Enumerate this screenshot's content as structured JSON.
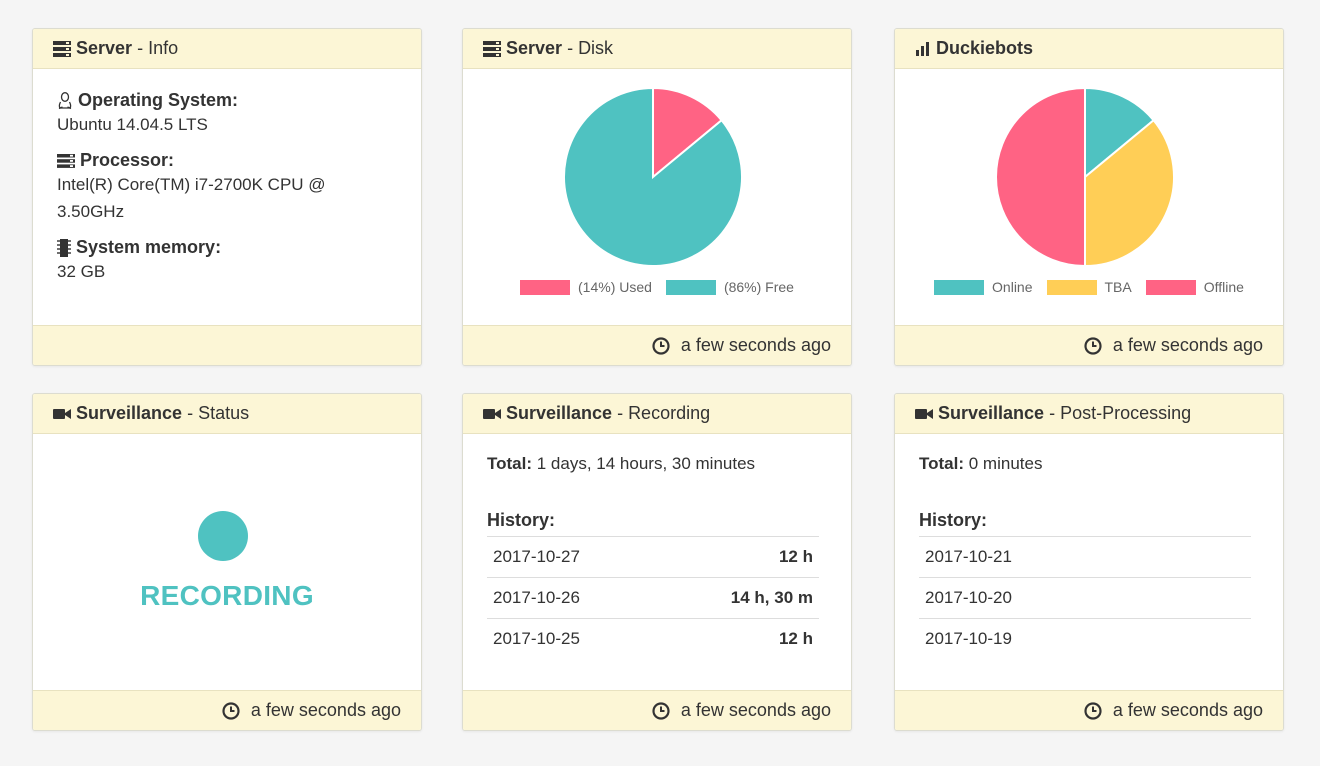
{
  "panels": {
    "server_info": {
      "title_bold": "Server",
      "title_rest": "Info",
      "os_label": "Operating System:",
      "os_value": "Ubuntu 14.04.5 LTS",
      "cpu_label": "Processor:",
      "cpu_value_line1": "Intel(R) Core(TM) i7-2700K CPU @",
      "cpu_value_line2": "3.50GHz",
      "mem_label": "System memory:",
      "mem_value": "32 GB"
    },
    "server_disk": {
      "title_bold": "Server",
      "title_rest": "Disk",
      "legend": [
        {
          "label": "(14%) Used",
          "color": "#ff6384"
        },
        {
          "label": "(86%) Free",
          "color": "#4fc2c1"
        }
      ],
      "footer": "a few seconds ago"
    },
    "duckiebots": {
      "title_bold": "Duckiebots",
      "legend": [
        {
          "label": "Online",
          "color": "#4fc2c1"
        },
        {
          "label": "TBA",
          "color": "#ffce56"
        },
        {
          "label": "Offline",
          "color": "#ff6384"
        }
      ],
      "footer": "a few seconds ago"
    },
    "surv_status": {
      "title_bold": "Surveillance",
      "title_rest": "Status",
      "status_text": "RECORDING",
      "footer": "a few seconds ago"
    },
    "surv_recording": {
      "title_bold": "Surveillance",
      "title_rest": "Recording",
      "total_label": "Total:",
      "total_value": "1 days, 14 hours, 30 minutes",
      "history_label": "History:",
      "history": [
        {
          "date": "2017-10-27",
          "value": "12 h"
        },
        {
          "date": "2017-10-26",
          "value": "14 h, 30 m"
        },
        {
          "date": "2017-10-25",
          "value": "12 h"
        }
      ],
      "footer": "a few seconds ago"
    },
    "surv_post": {
      "title_bold": "Surveillance",
      "title_rest": "Post-Processing",
      "total_label": "Total:",
      "total_value": "0 minutes",
      "history_label": "History:",
      "history": [
        {
          "date": "2017-10-21"
        },
        {
          "date": "2017-10-20"
        },
        {
          "date": "2017-10-19"
        }
      ],
      "footer": "a few seconds ago"
    }
  },
  "colors": {
    "teal": "#4fc2c1",
    "pink": "#ff6384",
    "yellow": "#ffce56",
    "header_bg": "#fcf6d6"
  },
  "chart_data": [
    {
      "type": "pie",
      "categories": [
        "(14%) Used",
        "(86%) Free"
      ],
      "values": [
        14,
        86
      ],
      "colors": [
        "#ff6384",
        "#4fc2c1"
      ],
      "legend": "bottom"
    },
    {
      "type": "pie",
      "categories": [
        "Online",
        "TBA",
        "Offline"
      ],
      "values": [
        14,
        36,
        50
      ],
      "colors": [
        "#4fc2c1",
        "#ffce56",
        "#ff6384"
      ],
      "legend": "bottom"
    }
  ]
}
